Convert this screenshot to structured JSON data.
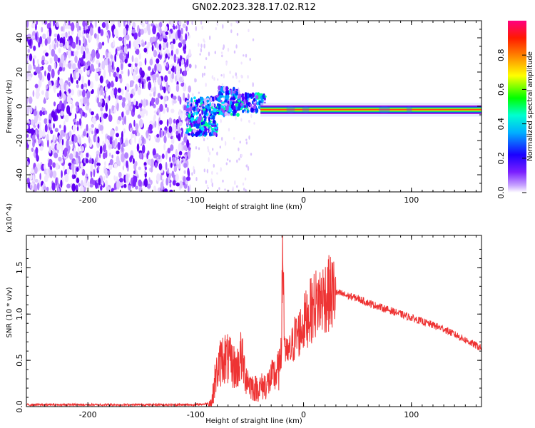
{
  "title": "GN02.2023.328.17.02.R12",
  "chart_data": [
    {
      "type": "heatmap",
      "name": "spectrogram",
      "xlabel": "Height of straight line (km)",
      "ylabel": "Frequency (Hz)",
      "xlim": [
        -257,
        165
      ],
      "ylim": [
        -50,
        50
      ],
      "xticks": [
        -200,
        -100,
        0,
        100
      ],
      "yticks": [
        -40,
        -20,
        0,
        20,
        40
      ],
      "noise_region_x": [
        -257,
        -105
      ],
      "signal_line_freq": -2,
      "colorbar": {
        "label": "Normalized spectral amplitude",
        "range": [
          0,
          1
        ],
        "ticks": [
          "0.0",
          "0.2",
          "0.4",
          "0.6",
          "0.8"
        ],
        "colors": [
          "#ffffff",
          "#9a4dff",
          "#5a00ff",
          "#0000ff",
          "#00ffff",
          "#00ff00",
          "#ffff00",
          "#ff8000",
          "#ff0000",
          "#ff0080"
        ]
      }
    },
    {
      "type": "line",
      "name": "snr",
      "xlabel": "Height of straight line (km)",
      "ylabel": "SNR (10 * v/v)",
      "y_multiplier": "(x10^4)",
      "xlim": [
        -257,
        165
      ],
      "ylim": [
        0,
        1.85
      ],
      "xticks": [
        -200,
        -100,
        0,
        100
      ],
      "yticks": [
        0.0,
        0.5,
        1.0,
        1.5
      ],
      "ytick_labels": [
        "0.0",
        "0.5",
        "1.0",
        "1.5"
      ],
      "color": "#ee3333",
      "x": [
        -257,
        -200,
        -150,
        -100,
        -90,
        -85,
        -82,
        -78,
        -74,
        -70,
        -66,
        -62,
        -58,
        -54,
        -50,
        -46,
        -42,
        -38,
        -34,
        -30,
        -26,
        -22,
        -20,
        -19,
        -18,
        -16,
        -12,
        -8,
        -4,
        0,
        5,
        10,
        15,
        20,
        25,
        30,
        35,
        40,
        50,
        60,
        70,
        80,
        90,
        100,
        110,
        120,
        130,
        140,
        150,
        160,
        165
      ],
      "y": [
        0.02,
        0.02,
        0.02,
        0.02,
        0.03,
        0.05,
        0.3,
        0.45,
        0.55,
        0.5,
        0.45,
        0.4,
        0.55,
        0.35,
        0.25,
        0.2,
        0.2,
        0.22,
        0.24,
        0.3,
        0.35,
        0.4,
        1.1,
        1.8,
        0.8,
        0.55,
        0.6,
        0.75,
        0.8,
        0.9,
        1.0,
        1.1,
        1.15,
        1.2,
        1.22,
        1.23,
        1.22,
        1.2,
        1.17,
        1.12,
        1.08,
        1.04,
        1.0,
        0.96,
        0.92,
        0.88,
        0.84,
        0.78,
        0.72,
        0.66,
        0.63
      ]
    }
  ]
}
